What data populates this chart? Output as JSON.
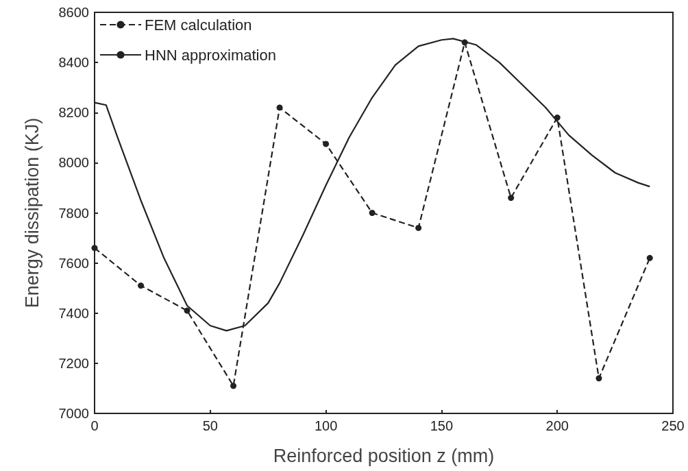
{
  "chart_data": {
    "type": "line",
    "xlabel": "Reinforced position z (mm)",
    "ylabel": "Energy dissipation (KJ)",
    "xlim": [
      0,
      250
    ],
    "xticks": [
      0,
      50,
      100,
      150,
      200,
      250
    ],
    "ylim": [
      7000,
      8600
    ],
    "yticks": [
      7000,
      7200,
      7400,
      7600,
      7800,
      8000,
      8200,
      8400,
      8600
    ],
    "grid": false,
    "legend": "top left",
    "series": [
      {
        "name": "FEM calculation",
        "color": "#222222",
        "line_style": "dashed",
        "marker": "circle",
        "x": [
          0,
          20,
          40,
          60,
          80,
          100,
          120,
          140,
          160,
          180,
          200,
          218,
          240
        ],
        "values": [
          7660,
          7510,
          7410,
          7110,
          8220,
          8075,
          7800,
          7740,
          8480,
          7860,
          8180,
          7140,
          7620
        ]
      },
      {
        "name": "HNN approximation",
        "color": "#222222",
        "line_style": "solid",
        "marker": "none",
        "x": [
          0,
          5,
          10,
          20,
          30,
          40,
          50,
          57,
          65,
          75,
          80,
          90,
          100,
          110,
          120,
          130,
          140,
          150,
          155,
          165,
          175,
          185,
          195,
          205,
          215,
          225,
          235,
          240
        ],
        "values": [
          8240,
          8230,
          8100,
          7850,
          7620,
          7430,
          7350,
          7330,
          7350,
          7440,
          7520,
          7710,
          7910,
          8100,
          8260,
          8390,
          8465,
          8490,
          8495,
          8470,
          8400,
          8310,
          8220,
          8110,
          8030,
          7960,
          7920,
          7905
        ]
      }
    ]
  }
}
